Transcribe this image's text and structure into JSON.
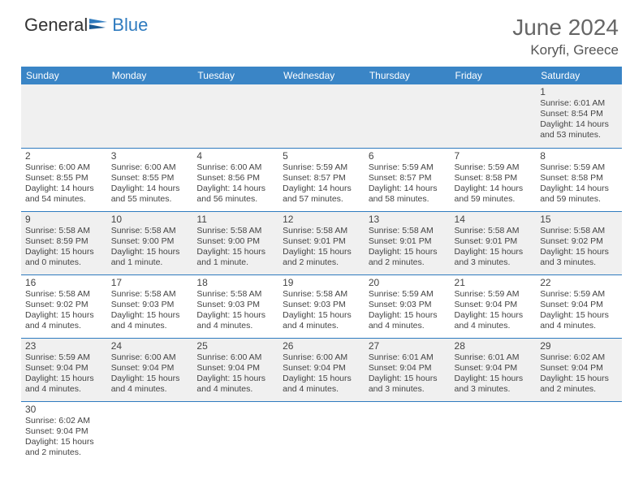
{
  "logo": {
    "text_general": "General",
    "text_blue": "Blue"
  },
  "title": "June 2024",
  "location": "Koryfi, Greece",
  "colors": {
    "header_bg": "#3a85c6",
    "header_text": "#ffffff",
    "border": "#2f7bbf",
    "odd_row_bg": "#f0f0f0",
    "even_row_bg": "#ffffff",
    "text": "#444444",
    "title_text": "#666666"
  },
  "dayLabels": [
    "Sunday",
    "Monday",
    "Tuesday",
    "Wednesday",
    "Thursday",
    "Friday",
    "Saturday"
  ],
  "weeks": [
    {
      "class": "week-odd",
      "days": [
        null,
        null,
        null,
        null,
        null,
        null,
        {
          "n": "1",
          "sunrise": "Sunrise: 6:01 AM",
          "sunset": "Sunset: 8:54 PM",
          "daylight": "Daylight: 14 hours and 53 minutes."
        }
      ]
    },
    {
      "class": "week-even",
      "days": [
        {
          "n": "2",
          "sunrise": "Sunrise: 6:00 AM",
          "sunset": "Sunset: 8:55 PM",
          "daylight": "Daylight: 14 hours and 54 minutes."
        },
        {
          "n": "3",
          "sunrise": "Sunrise: 6:00 AM",
          "sunset": "Sunset: 8:55 PM",
          "daylight": "Daylight: 14 hours and 55 minutes."
        },
        {
          "n": "4",
          "sunrise": "Sunrise: 6:00 AM",
          "sunset": "Sunset: 8:56 PM",
          "daylight": "Daylight: 14 hours and 56 minutes."
        },
        {
          "n": "5",
          "sunrise": "Sunrise: 5:59 AM",
          "sunset": "Sunset: 8:57 PM",
          "daylight": "Daylight: 14 hours and 57 minutes."
        },
        {
          "n": "6",
          "sunrise": "Sunrise: 5:59 AM",
          "sunset": "Sunset: 8:57 PM",
          "daylight": "Daylight: 14 hours and 58 minutes."
        },
        {
          "n": "7",
          "sunrise": "Sunrise: 5:59 AM",
          "sunset": "Sunset: 8:58 PM",
          "daylight": "Daylight: 14 hours and 59 minutes."
        },
        {
          "n": "8",
          "sunrise": "Sunrise: 5:59 AM",
          "sunset": "Sunset: 8:58 PM",
          "daylight": "Daylight: 14 hours and 59 minutes."
        }
      ]
    },
    {
      "class": "week-odd",
      "days": [
        {
          "n": "9",
          "sunrise": "Sunrise: 5:58 AM",
          "sunset": "Sunset: 8:59 PM",
          "daylight": "Daylight: 15 hours and 0 minutes."
        },
        {
          "n": "10",
          "sunrise": "Sunrise: 5:58 AM",
          "sunset": "Sunset: 9:00 PM",
          "daylight": "Daylight: 15 hours and 1 minute."
        },
        {
          "n": "11",
          "sunrise": "Sunrise: 5:58 AM",
          "sunset": "Sunset: 9:00 PM",
          "daylight": "Daylight: 15 hours and 1 minute."
        },
        {
          "n": "12",
          "sunrise": "Sunrise: 5:58 AM",
          "sunset": "Sunset: 9:01 PM",
          "daylight": "Daylight: 15 hours and 2 minutes."
        },
        {
          "n": "13",
          "sunrise": "Sunrise: 5:58 AM",
          "sunset": "Sunset: 9:01 PM",
          "daylight": "Daylight: 15 hours and 2 minutes."
        },
        {
          "n": "14",
          "sunrise": "Sunrise: 5:58 AM",
          "sunset": "Sunset: 9:01 PM",
          "daylight": "Daylight: 15 hours and 3 minutes."
        },
        {
          "n": "15",
          "sunrise": "Sunrise: 5:58 AM",
          "sunset": "Sunset: 9:02 PM",
          "daylight": "Daylight: 15 hours and 3 minutes."
        }
      ]
    },
    {
      "class": "week-even",
      "days": [
        {
          "n": "16",
          "sunrise": "Sunrise: 5:58 AM",
          "sunset": "Sunset: 9:02 PM",
          "daylight": "Daylight: 15 hours and 4 minutes."
        },
        {
          "n": "17",
          "sunrise": "Sunrise: 5:58 AM",
          "sunset": "Sunset: 9:03 PM",
          "daylight": "Daylight: 15 hours and 4 minutes."
        },
        {
          "n": "18",
          "sunrise": "Sunrise: 5:58 AM",
          "sunset": "Sunset: 9:03 PM",
          "daylight": "Daylight: 15 hours and 4 minutes."
        },
        {
          "n": "19",
          "sunrise": "Sunrise: 5:58 AM",
          "sunset": "Sunset: 9:03 PM",
          "daylight": "Daylight: 15 hours and 4 minutes."
        },
        {
          "n": "20",
          "sunrise": "Sunrise: 5:59 AM",
          "sunset": "Sunset: 9:03 PM",
          "daylight": "Daylight: 15 hours and 4 minutes."
        },
        {
          "n": "21",
          "sunrise": "Sunrise: 5:59 AM",
          "sunset": "Sunset: 9:04 PM",
          "daylight": "Daylight: 15 hours and 4 minutes."
        },
        {
          "n": "22",
          "sunrise": "Sunrise: 5:59 AM",
          "sunset": "Sunset: 9:04 PM",
          "daylight": "Daylight: 15 hours and 4 minutes."
        }
      ]
    },
    {
      "class": "week-odd",
      "days": [
        {
          "n": "23",
          "sunrise": "Sunrise: 5:59 AM",
          "sunset": "Sunset: 9:04 PM",
          "daylight": "Daylight: 15 hours and 4 minutes."
        },
        {
          "n": "24",
          "sunrise": "Sunrise: 6:00 AM",
          "sunset": "Sunset: 9:04 PM",
          "daylight": "Daylight: 15 hours and 4 minutes."
        },
        {
          "n": "25",
          "sunrise": "Sunrise: 6:00 AM",
          "sunset": "Sunset: 9:04 PM",
          "daylight": "Daylight: 15 hours and 4 minutes."
        },
        {
          "n": "26",
          "sunrise": "Sunrise: 6:00 AM",
          "sunset": "Sunset: 9:04 PM",
          "daylight": "Daylight: 15 hours and 4 minutes."
        },
        {
          "n": "27",
          "sunrise": "Sunrise: 6:01 AM",
          "sunset": "Sunset: 9:04 PM",
          "daylight": "Daylight: 15 hours and 3 minutes."
        },
        {
          "n": "28",
          "sunrise": "Sunrise: 6:01 AM",
          "sunset": "Sunset: 9:04 PM",
          "daylight": "Daylight: 15 hours and 3 minutes."
        },
        {
          "n": "29",
          "sunrise": "Sunrise: 6:02 AM",
          "sunset": "Sunset: 9:04 PM",
          "daylight": "Daylight: 15 hours and 2 minutes."
        }
      ]
    },
    {
      "class": "week-even trailing",
      "days": [
        {
          "n": "30",
          "sunrise": "Sunrise: 6:02 AM",
          "sunset": "Sunset: 9:04 PM",
          "daylight": "Daylight: 15 hours and 2 minutes."
        },
        null,
        null,
        null,
        null,
        null,
        null
      ]
    }
  ]
}
